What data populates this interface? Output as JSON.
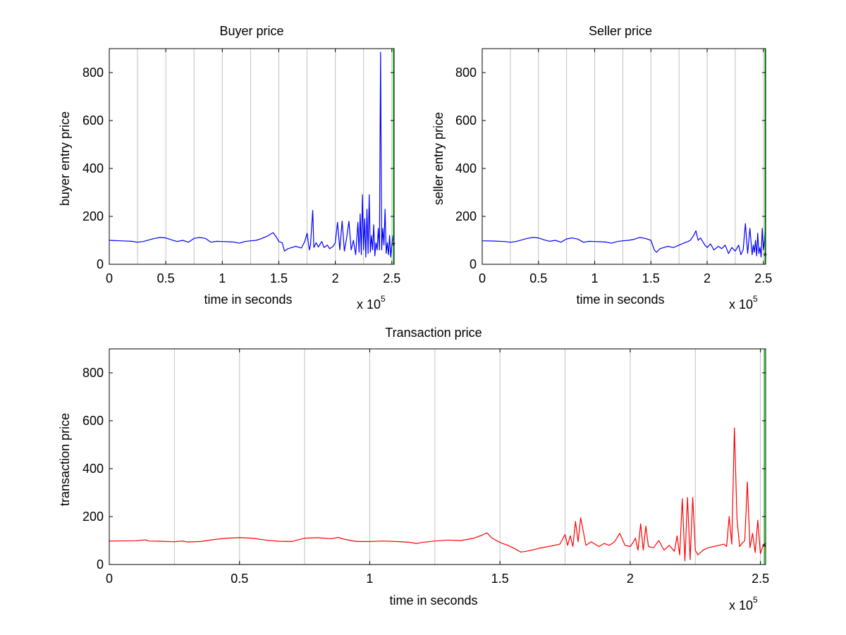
{
  "chart_data": [
    {
      "type": "line",
      "title": "Buyer price",
      "xlabel": "time in seconds",
      "ylabel": "buyer entry price",
      "x_multiplier_label": "x 10",
      "x_multiplier_exponent": "5",
      "xlim": [
        0,
        252000
      ],
      "ylim": [
        0,
        900
      ],
      "xticks": [
        0,
        50000,
        100000,
        150000,
        200000,
        250000
      ],
      "xtick_labels": [
        "0",
        "0.5",
        "1",
        "1.5",
        "2",
        "2.5"
      ],
      "yticks": [
        0,
        200,
        400,
        600,
        800
      ],
      "ytick_labels": [
        "0",
        "200",
        "400",
        "600",
        "800"
      ],
      "vertical_lines_x": [
        25000,
        50000,
        75000,
        100000,
        125000,
        150000,
        175000,
        200000,
        225000,
        250000
      ],
      "grid": "vertical lines",
      "colors": {
        "series": "#0000ff",
        "marker": "#00cc00",
        "grid": "#c0c0c0"
      },
      "end_marker": {
        "x": 251500,
        "y": 80,
        "color": "#00cc00",
        "symbol": "*"
      },
      "series": [
        {
          "color": "#0000ff",
          "x": [
            0,
            10000,
            20000,
            25000,
            30000,
            40000,
            45000,
            50000,
            55000,
            60000,
            65000,
            70000,
            75000,
            80000,
            85000,
            90000,
            95000,
            100000,
            105000,
            110000,
            115000,
            120000,
            125000,
            130000,
            135000,
            140000,
            145000,
            148000,
            150000,
            153000,
            155000,
            158000,
            160000,
            165000,
            170000,
            173000,
            175000,
            177000,
            178000,
            180000,
            181000,
            183000,
            185000,
            188000,
            190000,
            193000,
            195000,
            198000,
            200000,
            202000,
            204000,
            206000,
            208000,
            210000,
            212000,
            214000,
            216000,
            218000,
            220000,
            221000,
            222000,
            223000,
            224000,
            225000,
            226000,
            227000,
            228000,
            229000,
            230000,
            231000,
            232000,
            233000,
            234000,
            235000,
            236000,
            237000,
            238000,
            239000,
            240000,
            241000,
            242000,
            243000,
            244000,
            245000,
            246000,
            247000,
            248000,
            249000,
            250000,
            251000,
            252000
          ],
          "y": [
            100,
            98,
            96,
            92,
            95,
            108,
            112,
            110,
            102,
            95,
            100,
            92,
            108,
            112,
            108,
            92,
            96,
            95,
            94,
            93,
            88,
            95,
            98,
            100,
            108,
            118,
            132,
            112,
            95,
            90,
            55,
            65,
            68,
            75,
            68,
            95,
            130,
            60,
            80,
            225,
            70,
            90,
            72,
            95,
            70,
            80,
            65,
            75,
            90,
            175,
            60,
            180,
            55,
            110,
            180,
            60,
            100,
            40,
            175,
            50,
            210,
            40,
            290,
            60,
            190,
            30,
            230,
            45,
            290,
            50,
            120,
            60,
            165,
            35,
            90,
            60,
            150,
            60,
            885,
            60,
            150,
            80,
            230,
            45,
            90,
            40,
            120,
            30,
            80,
            120,
            60
          ]
        }
      ]
    },
    {
      "type": "line",
      "title": "Seller price",
      "xlabel": "time in seconds",
      "ylabel": "seller entry price",
      "x_multiplier_label": "x 10",
      "x_multiplier_exponent": "5",
      "xlim": [
        0,
        252000
      ],
      "ylim": [
        0,
        900
      ],
      "xticks": [
        0,
        50000,
        100000,
        150000,
        200000,
        250000
      ],
      "xtick_labels": [
        "0",
        "0.5",
        "1",
        "1.5",
        "2",
        "2.5"
      ],
      "yticks": [
        0,
        200,
        400,
        600,
        800
      ],
      "ytick_labels": [
        "0",
        "200",
        "400",
        "600",
        "800"
      ],
      "vertical_lines_x": [
        25000,
        50000,
        75000,
        100000,
        125000,
        150000,
        175000,
        200000,
        225000,
        250000
      ],
      "grid": "vertical lines",
      "colors": {
        "series": "#0000ff",
        "marker": "#00cc00",
        "grid": "#c0c0c0"
      },
      "end_marker": {
        "x": 251500,
        "y": 35,
        "color": "#00cc00",
        "symbol": "*"
      },
      "series": [
        {
          "color": "#0000ff",
          "x": [
            0,
            10000,
            20000,
            25000,
            30000,
            40000,
            45000,
            50000,
            55000,
            60000,
            65000,
            70000,
            75000,
            80000,
            85000,
            90000,
            95000,
            100000,
            105000,
            110000,
            115000,
            120000,
            125000,
            130000,
            135000,
            140000,
            145000,
            150000,
            153000,
            155000,
            158000,
            160000,
            165000,
            170000,
            175000,
            180000,
            183000,
            185000,
            188000,
            190000,
            192000,
            194000,
            196000,
            198000,
            200000,
            203000,
            206000,
            210000,
            213000,
            216000,
            219000,
            222000,
            225000,
            228000,
            230000,
            232000,
            234000,
            236000,
            238000,
            240000,
            241000,
            242000,
            243000,
            244000,
            245000,
            246000,
            247000,
            248000,
            249000,
            250000,
            251000,
            252000
          ],
          "y": [
            98,
            97,
            95,
            92,
            95,
            108,
            112,
            110,
            102,
            96,
            100,
            92,
            106,
            110,
            105,
            92,
            96,
            95,
            94,
            93,
            88,
            95,
            98,
            100,
            104,
            112,
            108,
            100,
            60,
            50,
            65,
            68,
            75,
            70,
            80,
            90,
            95,
            100,
            120,
            140,
            100,
            110,
            95,
            80,
            70,
            85,
            60,
            75,
            65,
            80,
            45,
            70,
            55,
            80,
            40,
            60,
            170,
            45,
            150,
            40,
            80,
            50,
            100,
            35,
            130,
            45,
            70,
            30,
            150,
            60,
            100,
            185
          ]
        }
      ]
    },
    {
      "type": "line",
      "title": "Transaction price",
      "xlabel": "time in seconds",
      "ylabel": "transaction price",
      "x_multiplier_label": "x 10",
      "x_multiplier_exponent": "5",
      "xlim": [
        0,
        252000
      ],
      "ylim": [
        0,
        900
      ],
      "xticks": [
        0,
        50000,
        100000,
        150000,
        200000,
        250000
      ],
      "xtick_labels": [
        "0",
        "0.5",
        "1",
        "1.5",
        "2",
        "2.5"
      ],
      "yticks": [
        0,
        200,
        400,
        600,
        800
      ],
      "ytick_labels": [
        "0",
        "200",
        "400",
        "600",
        "800"
      ],
      "vertical_lines_x": [
        25000,
        50000,
        75000,
        100000,
        125000,
        150000,
        175000,
        200000,
        225000,
        250000
      ],
      "grid": "vertical lines",
      "colors": {
        "series": "#ff0000",
        "marker": "#00cc00",
        "grid": "#c0c0c0"
      },
      "end_marker": {
        "x": 251500,
        "y": 75,
        "color": "#00cc00",
        "symbol": "*"
      },
      "series": [
        {
          "color": "#ff0000",
          "x": [
            0,
            10000,
            14000,
            15000,
            20000,
            25000,
            28000,
            30000,
            35000,
            40000,
            45000,
            50000,
            55000,
            60000,
            65000,
            70000,
            75000,
            80000,
            85000,
            88000,
            90000,
            95000,
            100000,
            105000,
            110000,
            115000,
            118000,
            120000,
            125000,
            130000,
            135000,
            140000,
            143000,
            145000,
            147000,
            150000,
            153000,
            155000,
            158000,
            160000,
            163000,
            165000,
            170000,
            173000,
            175000,
            176000,
            177000,
            178000,
            179000,
            180000,
            181000,
            183000,
            185000,
            188000,
            190000,
            192000,
            194000,
            196000,
            198000,
            200000,
            201000,
            202000,
            203000,
            204000,
            205000,
            206000,
            207000,
            209000,
            211000,
            213000,
            215000,
            217000,
            218000,
            219000,
            220000,
            221000,
            222000,
            223000,
            224000,
            225000,
            226000,
            228000,
            230000,
            232000,
            234000,
            236000,
            237000,
            238000,
            239000,
            240000,
            241000,
            242000,
            243000,
            244000,
            245000,
            246000,
            247000,
            248000,
            249000,
            250000,
            251000,
            252000
          ],
          "y": [
            98,
            99,
            103,
            98,
            97,
            95,
            98,
            94,
            96,
            104,
            110,
            112,
            110,
            102,
            97,
            96,
            110,
            112,
            108,
            113,
            106,
            96,
            96,
            98,
            96,
            93,
            88,
            92,
            98,
            102,
            100,
            110,
            122,
            132,
            110,
            92,
            80,
            70,
            52,
            55,
            62,
            68,
            78,
            85,
            125,
            80,
            120,
            75,
            180,
            95,
            195,
            80,
            95,
            75,
            88,
            80,
            95,
            130,
            80,
            75,
            90,
            110,
            60,
            170,
            60,
            160,
            75,
            70,
            100,
            60,
            80,
            55,
            120,
            40,
            275,
            15,
            280,
            20,
            280,
            60,
            40,
            60,
            70,
            75,
            80,
            85,
            75,
            200,
            85,
            570,
            190,
            75,
            90,
            100,
            345,
            70,
            130,
            50,
            185,
            45,
            80,
            90
          ]
        }
      ]
    }
  ]
}
